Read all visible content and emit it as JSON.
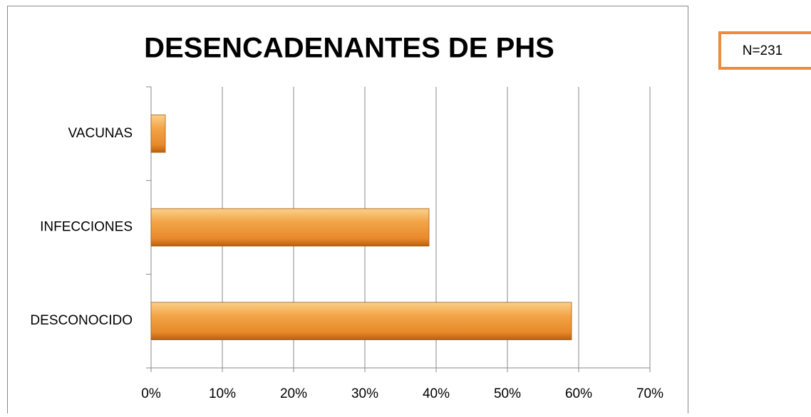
{
  "chart_data": {
    "type": "bar",
    "orientation": "horizontal",
    "title": "DESENCADENANTES DE PHS",
    "annotation": "N=231",
    "categories": [
      "VACUNAS",
      "INFECCIONES",
      "DESCONOCIDO"
    ],
    "values": [
      2,
      39,
      59
    ],
    "color": "#e8892a",
    "xlim": [
      0,
      70
    ],
    "xticks": [
      {
        "value": 0,
        "label": "0%"
      },
      {
        "value": 10,
        "label": "10%"
      },
      {
        "value": 20,
        "label": "20%"
      },
      {
        "value": 30,
        "label": "30%"
      },
      {
        "value": 40,
        "label": "40%"
      },
      {
        "value": 50,
        "label": "50%"
      },
      {
        "value": 60,
        "label": "60%"
      },
      {
        "value": 70,
        "label": "70%"
      }
    ],
    "grid": true
  }
}
